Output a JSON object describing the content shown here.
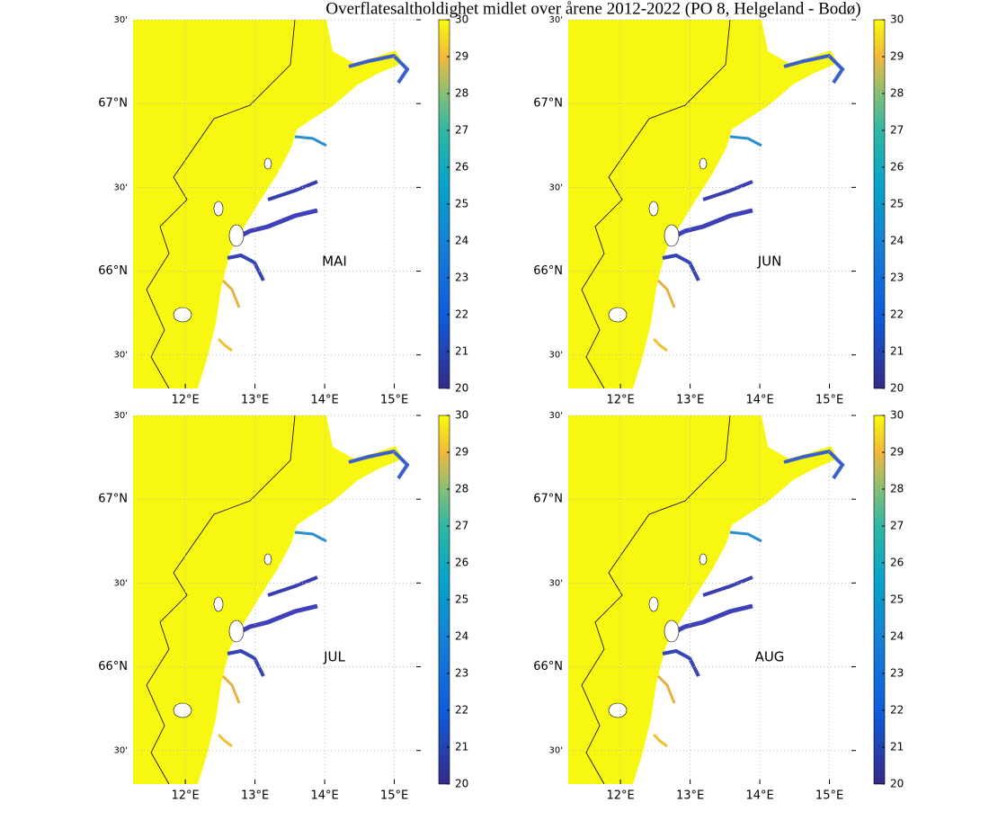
{
  "title": "Overflatesaltholdighet midlet over årene 2012-2022 (PO 8, Helgeland - Bodø)",
  "panels": [
    {
      "label": "MAI"
    },
    {
      "label": "JUN"
    },
    {
      "label": "JUL"
    },
    {
      "label": "AUG"
    }
  ],
  "lon_lim": [
    11.25,
    15.38
  ],
  "lat_lim": [
    65.3,
    67.5
  ],
  "lon_ticks": [
    {
      "value": 12,
      "label": "12°E"
    },
    {
      "value": 13,
      "label": "13°E"
    },
    {
      "value": 14,
      "label": "14°E"
    },
    {
      "value": 15,
      "label": "15°E"
    }
  ],
  "lat_ticks": [
    {
      "value": 67.5,
      "label": "30'"
    },
    {
      "value": 67,
      "label": "67°N"
    },
    {
      "value": 66.5,
      "label": "30'"
    },
    {
      "value": 66,
      "label": "66°N"
    },
    {
      "value": 65.5,
      "label": "30'"
    }
  ],
  "colorbar": {
    "lim": [
      20,
      30
    ],
    "ticks": [
      20,
      21,
      22,
      23,
      24,
      25,
      26,
      27,
      28,
      29,
      30
    ]
  }
}
